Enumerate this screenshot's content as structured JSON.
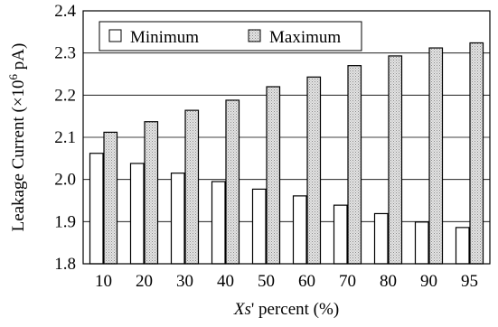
{
  "chart_data": {
    "type": "bar",
    "title": "",
    "xlabel_italic": "Xs",
    "xlabel_rest": "' percent (%)",
    "ylabel_main": "Leakage Current (×10",
    "ylabel_sup": "6",
    "ylabel_end": " pA)",
    "categories": [
      "10",
      "20",
      "30",
      "40",
      "50",
      "60",
      "70",
      "80",
      "90",
      "95"
    ],
    "series": [
      {
        "name": "Minimum",
        "fill": "#ffffff",
        "values": [
          2.062,
          2.038,
          2.015,
          1.995,
          1.977,
          1.961,
          1.939,
          1.919,
          1.899,
          1.886
        ]
      },
      {
        "name": "Maximum",
        "fill": "#d9d9d9",
        "values": [
          2.112,
          2.137,
          2.164,
          2.188,
          2.22,
          2.243,
          2.27,
          2.293,
          2.312,
          2.324
        ]
      }
    ],
    "yticks": [
      "1.8",
      "1.9",
      "2.0",
      "2.1",
      "2.2",
      "2.3",
      "2.4"
    ],
    "ylim": [
      1.8,
      2.4
    ],
    "grid": "horizontal",
    "legend_position": "top-left"
  }
}
